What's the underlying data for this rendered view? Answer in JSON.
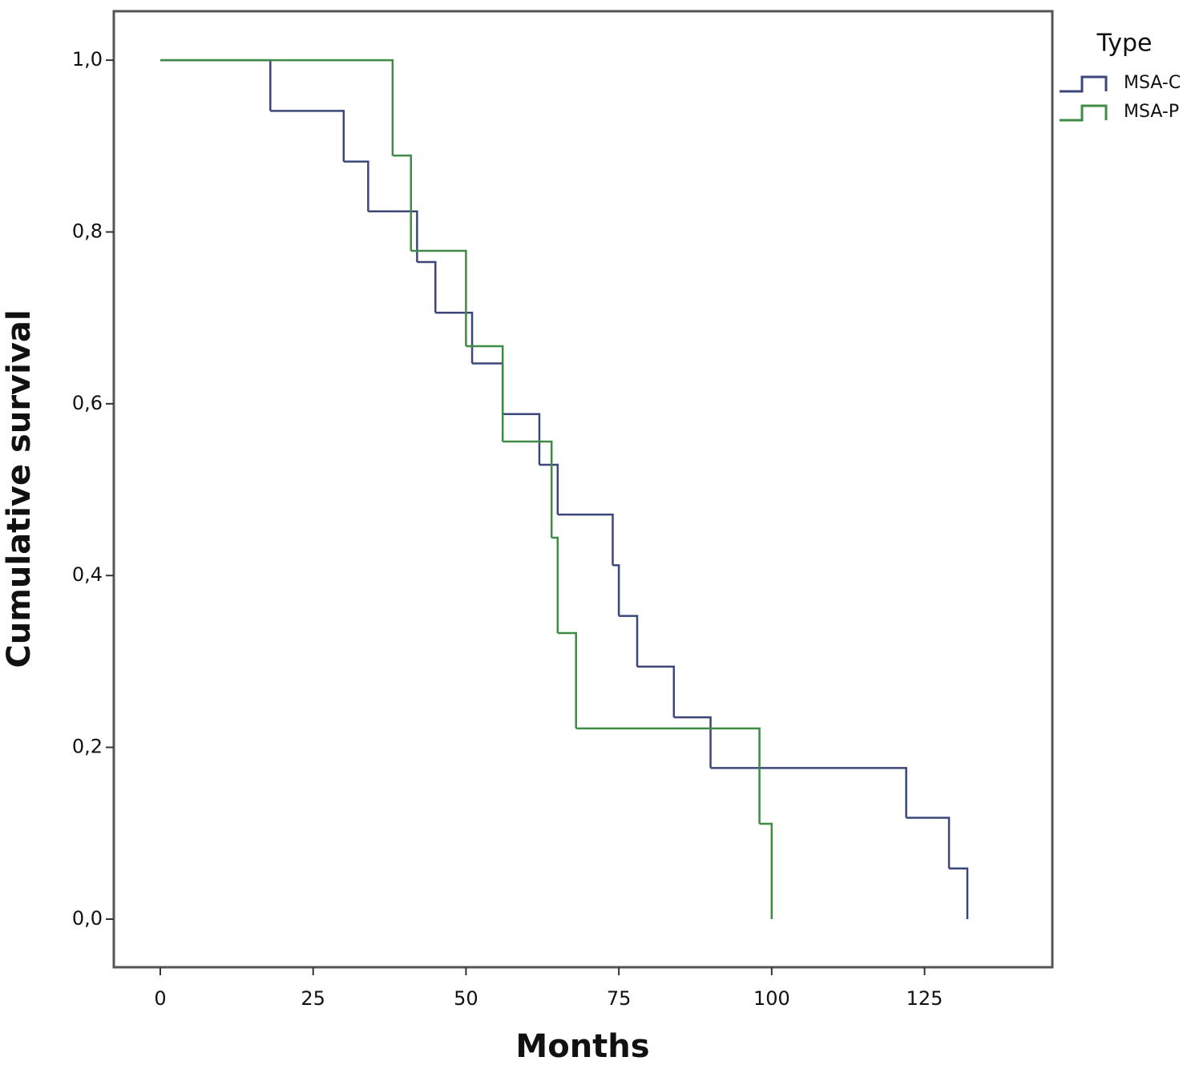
{
  "chart_data": {
    "type": "step",
    "xlabel": "Months",
    "ylabel": "Cumulative survival",
    "legend_title": "Type",
    "legend": "right",
    "xlim": [
      -7.6,
      145.9
    ],
    "ylim": [
      -0.056,
      1.057
    ],
    "xticks": [
      0,
      25,
      50,
      75,
      100,
      125
    ],
    "yticks": [
      {
        "value": 0,
        "label": "0,0"
      },
      {
        "value": 0.2,
        "label": "0,2"
      },
      {
        "value": 0.4,
        "label": "0,4"
      },
      {
        "value": 0.6,
        "label": "0,6"
      },
      {
        "value": 0.8,
        "label": "0,8"
      },
      {
        "value": 1,
        "label": "1,0"
      }
    ],
    "series": [
      {
        "name": "MSA-C",
        "color": "#3c4678",
        "x": [
          0,
          18,
          30,
          34,
          42,
          45,
          51,
          56,
          62,
          65,
          74,
          75,
          78,
          84,
          90,
          122,
          129,
          132
        ],
        "values": [
          1,
          0.941,
          0.882,
          0.824,
          0.765,
          0.706,
          0.647,
          0.588,
          0.529,
          0.471,
          0.412,
          0.353,
          0.294,
          0.235,
          0.176,
          0.118,
          0.059,
          0
        ]
      },
      {
        "name": "MSA-P",
        "color": "#3f8a45",
        "x": [
          0,
          38,
          41,
          50,
          56,
          64,
          65,
          68,
          98,
          100
        ],
        "values": [
          1,
          0.889,
          0.778,
          0.667,
          0.556,
          0.444,
          0.333,
          0.222,
          0.111,
          0
        ]
      }
    ]
  }
}
